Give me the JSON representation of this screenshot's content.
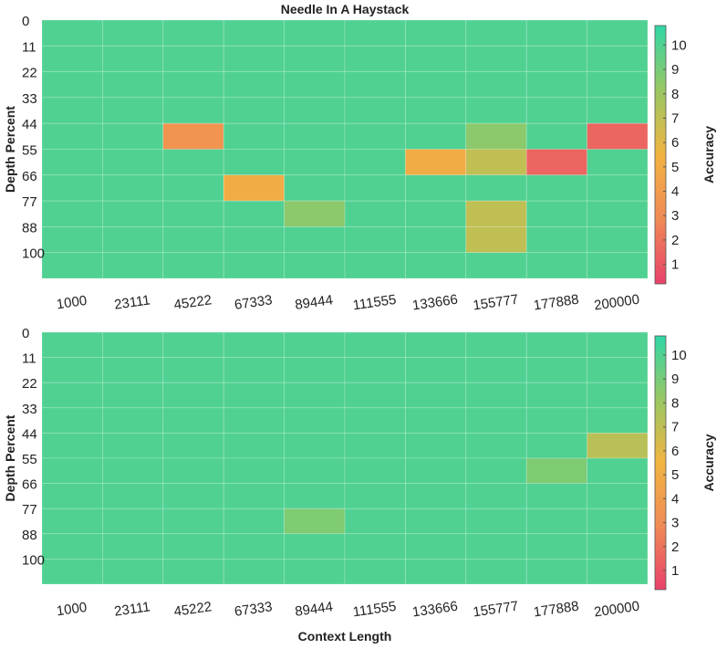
{
  "chart_data": [
    {
      "type": "heatmap",
      "title": "Needle In A Haystack",
      "xlabel": "",
      "ylabel": "Depth Percent",
      "x_categories": [
        "1000",
        "23111",
        "45222",
        "67333",
        "89444",
        "111555",
        "133666",
        "155777",
        "177888",
        "200000"
      ],
      "y_categories": [
        "0",
        "11",
        "22",
        "33",
        "44",
        "55",
        "66",
        "77",
        "88",
        "100"
      ],
      "values": [
        [
          10,
          10,
          10,
          10,
          10,
          10,
          10,
          10,
          10,
          10
        ],
        [
          10,
          10,
          10,
          10,
          10,
          10,
          10,
          10,
          10,
          10
        ],
        [
          10,
          10,
          10,
          10,
          10,
          10,
          10,
          10,
          10,
          10
        ],
        [
          10,
          10,
          10,
          10,
          10,
          10,
          10,
          10,
          10,
          10
        ],
        [
          10,
          10,
          3.5,
          10,
          10,
          10,
          10,
          8.5,
          10,
          1.5
        ],
        [
          10,
          10,
          10,
          10,
          10,
          10,
          5,
          7,
          1.5,
          10
        ],
        [
          10,
          10,
          10,
          5,
          10,
          10,
          10,
          10,
          10,
          10
        ],
        [
          10,
          10,
          10,
          10,
          8.5,
          10,
          10,
          7,
          10,
          10
        ],
        [
          10,
          10,
          10,
          10,
          10,
          10,
          10,
          7,
          10,
          10
        ],
        [
          10,
          10,
          10,
          10,
          10,
          10,
          10,
          10,
          10,
          10
        ]
      ],
      "colorbar": {
        "label": "Accuracy",
        "ticks": [
          1,
          2,
          3,
          4,
          5,
          6,
          7,
          8,
          9,
          10
        ],
        "range": [
          0.2,
          10.8
        ]
      }
    },
    {
      "type": "heatmap",
      "title": "",
      "xlabel": "Context Length",
      "ylabel": "Depth Percent",
      "x_categories": [
        "1000",
        "23111",
        "45222",
        "67333",
        "89444",
        "111555",
        "133666",
        "155777",
        "177888",
        "200000"
      ],
      "y_categories": [
        "0",
        "11",
        "22",
        "33",
        "44",
        "55",
        "66",
        "77",
        "88",
        "100"
      ],
      "values": [
        [
          10,
          10,
          10,
          10,
          10,
          10,
          10,
          10,
          10,
          10
        ],
        [
          10,
          10,
          10,
          10,
          10,
          10,
          10,
          10,
          10,
          10
        ],
        [
          10,
          10,
          10,
          10,
          10,
          10,
          10,
          10,
          10,
          10
        ],
        [
          10,
          10,
          10,
          10,
          10,
          10,
          10,
          10,
          10,
          10
        ],
        [
          10,
          10,
          10,
          10,
          10,
          10,
          10,
          10,
          10,
          7.2
        ],
        [
          10,
          10,
          10,
          10,
          10,
          10,
          10,
          10,
          8.8,
          10
        ],
        [
          10,
          10,
          10,
          10,
          10,
          10,
          10,
          10,
          10,
          10
        ],
        [
          10,
          10,
          10,
          10,
          8.8,
          10,
          10,
          10,
          10,
          10
        ],
        [
          10,
          10,
          10,
          10,
          10,
          10,
          10,
          10,
          10,
          10
        ],
        [
          10,
          10,
          10,
          10,
          10,
          10,
          10,
          10,
          10,
          10
        ]
      ],
      "colorbar": {
        "label": "Accuracy",
        "ticks": [
          1,
          2,
          3,
          4,
          5,
          6,
          7,
          8,
          9,
          10
        ],
        "range": [
          0.2,
          10.8
        ]
      }
    }
  ],
  "colorscale": [
    "#e8416b",
    "#f08a55",
    "#f2b441",
    "#99c763",
    "#30d6a6"
  ]
}
